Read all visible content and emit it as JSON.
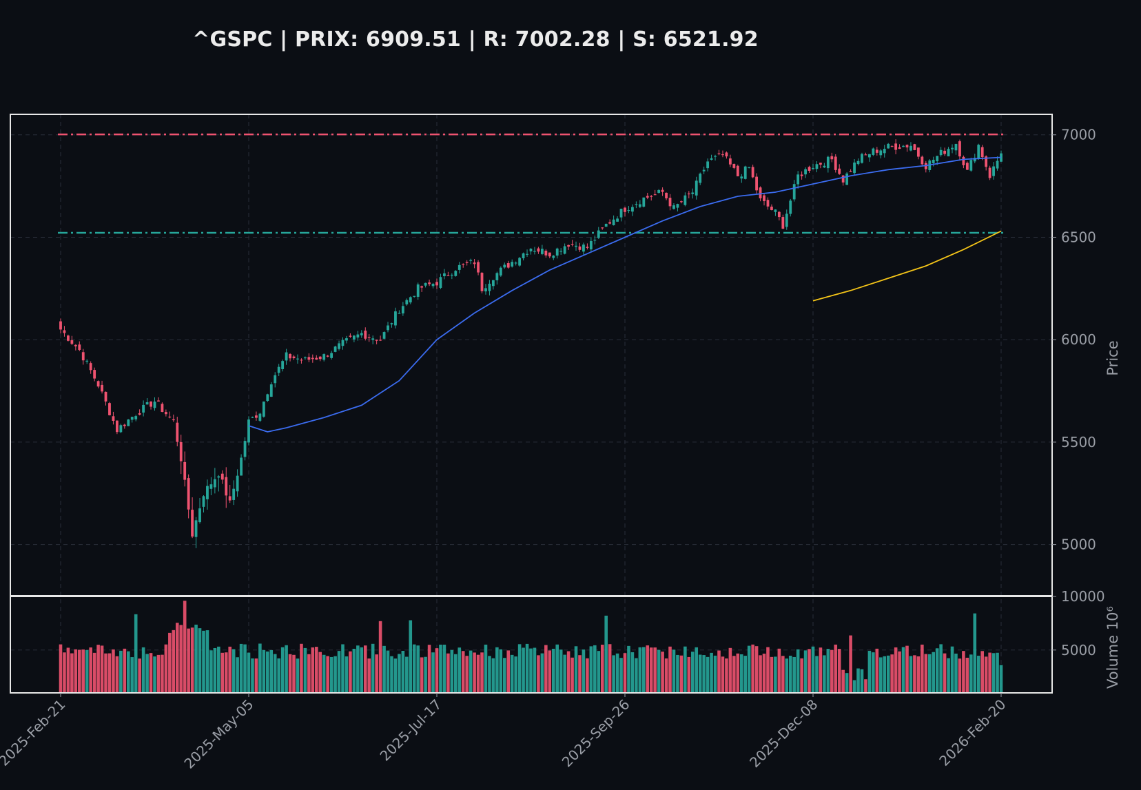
{
  "title": "^GSPC | PRIX: 6909.51 | R: 7002.28 | S: 6521.92",
  "colors": {
    "background": "#0b0e14",
    "up": "#26a69a",
    "down": "#ef5370",
    "resistance": "#ef5370",
    "support": "#26a69a",
    "ma_short": "#3b6cf0",
    "ma_long": "#f5c518",
    "grid": "#2a2f3a",
    "frame": "#e8e8e8",
    "text": "#9a9ea6"
  },
  "chart_data": {
    "type": "candlestick",
    "ticker": "^GSPC",
    "price": 6909.51,
    "resistance": 7002.28,
    "support": 6521.92,
    "price_axis": {
      "label": "Price",
      "ylim": [
        4750,
        7100
      ],
      "ticks": [
        5000,
        5500,
        6000,
        6500,
        7000
      ]
    },
    "volume_axis": {
      "label": "Volume  10⁶",
      "ylim": [
        1000,
        10000
      ],
      "ticks": [
        5000,
        10000
      ]
    },
    "x_ticks": [
      "2025-Feb-21",
      "2025-May-05",
      "2025-Jul-17",
      "2025-Sep-26",
      "2025-Dec-08",
      "2026-Feb-20"
    ],
    "x_tick_index": [
      0,
      50,
      100,
      150,
      200,
      250
    ],
    "candle_count": 251,
    "anchors": [
      [
        0,
        6050
      ],
      [
        5,
        5950
      ],
      [
        10,
        5780
      ],
      [
        15,
        5560
      ],
      [
        20,
        5640
      ],
      [
        25,
        5700
      ],
      [
        30,
        5600
      ],
      [
        32,
        5420
      ],
      [
        35,
        5050
      ],
      [
        38,
        5250
      ],
      [
        42,
        5350
      ],
      [
        45,
        5200
      ],
      [
        48,
        5420
      ],
      [
        50,
        5600
      ],
      [
        53,
        5650
      ],
      [
        56,
        5800
      ],
      [
        60,
        5920
      ],
      [
        65,
        5900
      ],
      [
        70,
        5920
      ],
      [
        75,
        5980
      ],
      [
        80,
        6030
      ],
      [
        85,
        6000
      ],
      [
        90,
        6150
      ],
      [
        95,
        6250
      ],
      [
        100,
        6280
      ],
      [
        105,
        6350
      ],
      [
        110,
        6380
      ],
      [
        112,
        6250
      ],
      [
        115,
        6310
      ],
      [
        120,
        6380
      ],
      [
        125,
        6450
      ],
      [
        130,
        6420
      ],
      [
        135,
        6470
      ],
      [
        140,
        6450
      ],
      [
        145,
        6560
      ],
      [
        150,
        6640
      ],
      [
        155,
        6690
      ],
      [
        160,
        6720
      ],
      [
        163,
        6640
      ],
      [
        168,
        6720
      ],
      [
        172,
        6870
      ],
      [
        176,
        6900
      ],
      [
        180,
        6800
      ],
      [
        183,
        6840
      ],
      [
        186,
        6680
      ],
      [
        190,
        6620
      ],
      [
        192,
        6560
      ],
      [
        196,
        6800
      ],
      [
        200,
        6850
      ],
      [
        205,
        6880
      ],
      [
        208,
        6780
      ],
      [
        212,
        6880
      ],
      [
        216,
        6920
      ],
      [
        220,
        6940
      ],
      [
        226,
        6950
      ],
      [
        230,
        6850
      ],
      [
        234,
        6910
      ],
      [
        238,
        6960
      ],
      [
        241,
        6820
      ],
      [
        244,
        6950
      ],
      [
        247,
        6800
      ],
      [
        250,
        6910
      ]
    ],
    "ma_short": [
      [
        50,
        5580
      ],
      [
        55,
        5550
      ],
      [
        60,
        5570
      ],
      [
        70,
        5620
      ],
      [
        80,
        5680
      ],
      [
        90,
        5800
      ],
      [
        100,
        6000
      ],
      [
        110,
        6130
      ],
      [
        120,
        6240
      ],
      [
        130,
        6340
      ],
      [
        140,
        6420
      ],
      [
        150,
        6500
      ],
      [
        160,
        6580
      ],
      [
        170,
        6650
      ],
      [
        180,
        6700
      ],
      [
        190,
        6720
      ],
      [
        200,
        6760
      ],
      [
        210,
        6800
      ],
      [
        220,
        6830
      ],
      [
        230,
        6850
      ],
      [
        240,
        6880
      ],
      [
        250,
        6890
      ]
    ],
    "ma_long": [
      [
        200,
        6190
      ],
      [
        210,
        6240
      ],
      [
        220,
        6300
      ],
      [
        230,
        6360
      ],
      [
        240,
        6440
      ],
      [
        250,
        6530
      ]
    ],
    "volume_base": 4900
  }
}
